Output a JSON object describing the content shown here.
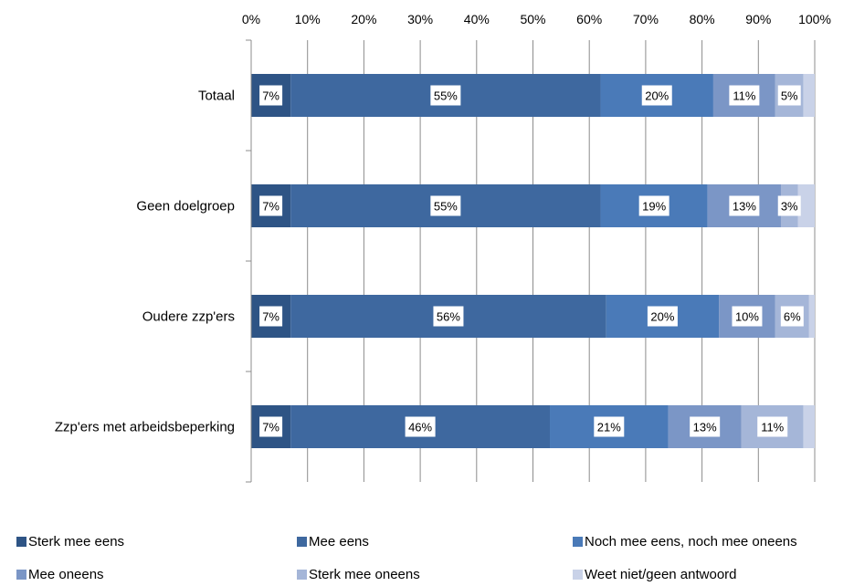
{
  "chart_data": {
    "type": "bar",
    "orientation": "horizontal",
    "stacked": true,
    "percent": true,
    "title": "",
    "xlabel": "",
    "ylabel": "",
    "xlim": [
      0,
      100
    ],
    "x_ticks": [
      "0%",
      "10%",
      "20%",
      "30%",
      "40%",
      "50%",
      "60%",
      "70%",
      "80%",
      "90%",
      "100%"
    ],
    "grid": "vertical",
    "legend_position": "bottom",
    "categories": [
      "Totaal",
      "Geen doelgroep",
      "Oudere zzp'ers",
      "Zzp'ers met arbeidsbeperking"
    ],
    "series": [
      {
        "name": "Sterk mee eens",
        "color": "#2e5485",
        "values": [
          7,
          7,
          7,
          7
        ],
        "labels": [
          "7%",
          "7%",
          "7%",
          "7%"
        ]
      },
      {
        "name": "Mee eens",
        "color": "#3e689f",
        "values": [
          55,
          55,
          56,
          46
        ],
        "labels": [
          "55%",
          "55%",
          "56%",
          "46%"
        ]
      },
      {
        "name": "Noch mee eens, noch mee oneens",
        "color": "#4a7ab8",
        "values": [
          20,
          19,
          20,
          21
        ],
        "labels": [
          "20%",
          "19%",
          "20%",
          "21%"
        ]
      },
      {
        "name": "Mee oneens",
        "color": "#7b96c6",
        "values": [
          11,
          13,
          10,
          13
        ],
        "labels": [
          "11%",
          "13%",
          "10%",
          "13%"
        ]
      },
      {
        "name": "Sterk mee oneens",
        "color": "#a5b6d8",
        "values": [
          5,
          3,
          6,
          11
        ],
        "labels": [
          "5%",
          "3%",
          "6%",
          "11%"
        ]
      },
      {
        "name": "Weet niet/geen antwoord",
        "color": "#c9d2e8",
        "values": [
          2,
          3,
          1,
          2
        ],
        "labels": [
          "",
          "",
          "",
          ""
        ]
      }
    ]
  }
}
